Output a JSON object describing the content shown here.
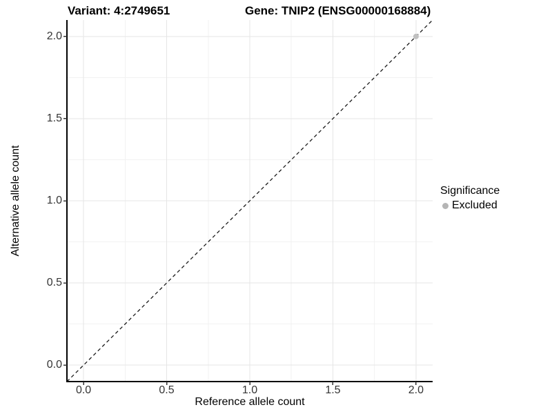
{
  "figure": {
    "title_left": "Variant: 4:2749651",
    "title_right": "Gene: TNIP2 (ENSG00000168884)"
  },
  "axes": {
    "x_title": "Reference allele count",
    "y_title": "Alternative allele count"
  },
  "legend": {
    "title": "Significance",
    "items": [
      {
        "label": "Excluded",
        "color": "#b5b5b5"
      }
    ]
  },
  "colors": {
    "background": "#ffffff",
    "axis_line": "#000000",
    "tick_mark": "#333333",
    "tick_label": "#333333",
    "major_grid": "#e5e5e5",
    "minor_grid": "#f2f2f2",
    "reference_line": "#1a1a1a",
    "point": "#c0c0c0"
  },
  "chart_data": {
    "type": "scatter",
    "title": "Variant: 4:2749651    Gene: TNIP2 (ENSG00000168884)",
    "xlabel": "Reference allele count",
    "ylabel": "Alternative allele count",
    "xlim": [
      -0.1,
      2.1
    ],
    "ylim": [
      -0.1,
      2.1
    ],
    "x_ticks": [
      0.0,
      0.5,
      1.0,
      1.5,
      2.0
    ],
    "x_tick_labels": [
      "0.0",
      "0.5",
      "1.0",
      "1.5",
      "2.0"
    ],
    "y_ticks": [
      0.0,
      0.5,
      1.0,
      1.5,
      2.0
    ],
    "y_tick_labels": [
      "0.0",
      "0.5",
      "1.0",
      "1.5",
      "2.0"
    ],
    "minor_ticks": [
      0.25,
      0.75,
      1.25,
      1.75
    ],
    "grid": true,
    "legend_position": "right",
    "legend_title": "Significance",
    "reference_line": {
      "type": "identity",
      "equation": "y = x",
      "style": "dashed"
    },
    "series": [
      {
        "name": "Excluded",
        "color": "#c0c0c0",
        "points": [
          [
            2.0,
            2.0
          ]
        ]
      }
    ]
  }
}
